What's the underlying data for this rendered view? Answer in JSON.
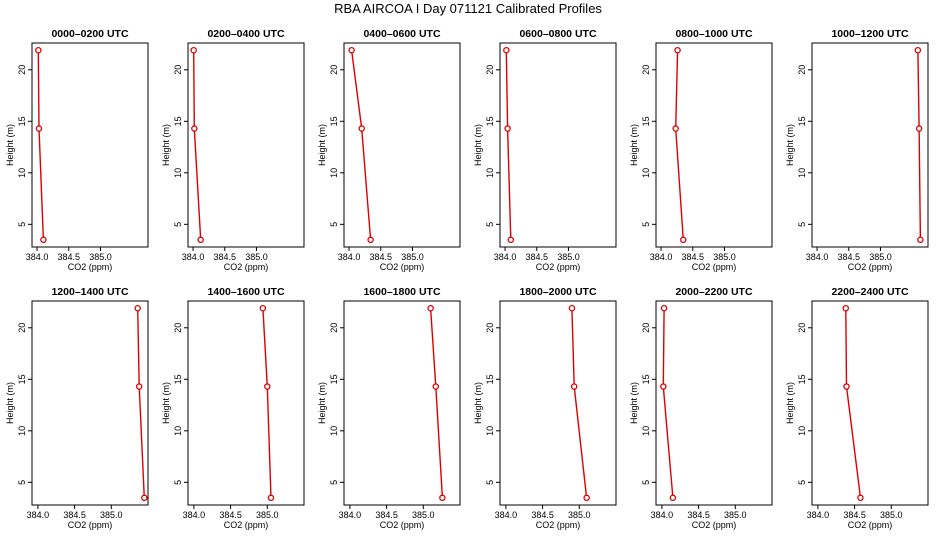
{
  "title": "RBA AIRCOA I  Day 071121  Calibrated Profiles",
  "chart_data": [
    {
      "type": "line",
      "title": "0000–0200 UTC",
      "xlabel": "CO2 (ppm)",
      "ylabel": "Height (m)",
      "x": [
        384.1,
        384.03,
        384.02
      ],
      "y": [
        3.5,
        14.3,
        21.9
      ],
      "xlim": [
        383.92,
        385.75
      ],
      "ylim": [
        2.8,
        22.6
      ],
      "xticks": [
        384.0,
        384.5,
        385.0
      ],
      "xtick_labels": [
        "384.0",
        "384.5",
        "385.0"
      ],
      "yticks": [
        5,
        10,
        15,
        20
      ],
      "ytick_labels": [
        "5",
        "10",
        "15",
        "20"
      ]
    },
    {
      "type": "line",
      "title": "0200–0400 UTC",
      "xlabel": "CO2 (ppm)",
      "ylabel": "Height (m)",
      "x": [
        384.12,
        384.02,
        384.01
      ],
      "y": [
        3.5,
        14.3,
        21.9
      ],
      "xlim": [
        383.92,
        385.75
      ],
      "ylim": [
        2.8,
        22.6
      ],
      "xticks": [
        384.0,
        384.5,
        385.0
      ],
      "xtick_labels": [
        "384.0",
        "384.5",
        "385.0"
      ],
      "yticks": [
        5,
        10,
        15,
        20
      ],
      "ytick_labels": [
        "5",
        "10",
        "15",
        "20"
      ]
    },
    {
      "type": "line",
      "title": "0400–0600 UTC",
      "xlabel": "CO2 (ppm)",
      "ylabel": "Height (m)",
      "x": [
        384.34,
        384.2,
        384.04
      ],
      "y": [
        3.5,
        14.3,
        21.9
      ],
      "xlim": [
        383.92,
        385.75
      ],
      "ylim": [
        2.8,
        22.6
      ],
      "xticks": [
        384.0,
        384.5,
        385.0
      ],
      "xtick_labels": [
        "384.0",
        "384.5",
        "385.0"
      ],
      "yticks": [
        5,
        10,
        15,
        20
      ],
      "ytick_labels": [
        "5",
        "10",
        "15",
        "20"
      ]
    },
    {
      "type": "line",
      "title": "0600–0800 UTC",
      "xlabel": "CO2 (ppm)",
      "ylabel": "Height (m)",
      "x": [
        384.09,
        384.04,
        384.02
      ],
      "y": [
        3.5,
        14.3,
        21.9
      ],
      "xlim": [
        383.92,
        385.75
      ],
      "ylim": [
        2.8,
        22.6
      ],
      "xticks": [
        384.0,
        384.5,
        385.0
      ],
      "xtick_labels": [
        "384.0",
        "384.5",
        "385.0"
      ],
      "yticks": [
        5,
        10,
        15,
        20
      ],
      "ytick_labels": [
        "5",
        "10",
        "15",
        "20"
      ]
    },
    {
      "type": "line",
      "title": "0800–1000 UTC",
      "xlabel": "CO2 (ppm)",
      "ylabel": "Height (m)",
      "x": [
        384.35,
        384.23,
        384.26
      ],
      "y": [
        3.5,
        14.3,
        21.9
      ],
      "xlim": [
        383.92,
        385.75
      ],
      "ylim": [
        2.8,
        22.6
      ],
      "xticks": [
        384.0,
        384.5,
        385.0
      ],
      "xtick_labels": [
        "384.0",
        "384.5",
        "385.0"
      ],
      "yticks": [
        5,
        10,
        15,
        20
      ],
      "ytick_labels": [
        "5",
        "10",
        "15",
        "20"
      ]
    },
    {
      "type": "line",
      "title": "1000–1200 UTC",
      "xlabel": "CO2 (ppm)",
      "ylabel": "Height (m)",
      "x": [
        385.63,
        385.61,
        385.59
      ],
      "y": [
        3.5,
        14.3,
        21.9
      ],
      "xlim": [
        383.92,
        385.75
      ],
      "ylim": [
        2.8,
        22.6
      ],
      "xticks": [
        384.0,
        384.5,
        385.0
      ],
      "xtick_labels": [
        "384.0",
        "384.5",
        "385.0"
      ],
      "yticks": [
        5,
        10,
        15,
        20
      ],
      "ytick_labels": [
        "5",
        "10",
        "15",
        "20"
      ]
    },
    {
      "type": "line",
      "title": "1200–1400 UTC",
      "xlabel": "CO2 (ppm)",
      "ylabel": "Height (m)",
      "x": [
        385.45,
        385.38,
        385.36
      ],
      "y": [
        3.5,
        14.3,
        21.9
      ],
      "xlim": [
        383.92,
        385.5
      ],
      "ylim": [
        2.8,
        22.6
      ],
      "xticks": [
        384.0,
        384.5,
        385.0
      ],
      "xtick_labels": [
        "384.0",
        "384.5",
        "385.0"
      ],
      "yticks": [
        5,
        10,
        15,
        20
      ],
      "ytick_labels": [
        "5",
        "10",
        "15",
        "20"
      ]
    },
    {
      "type": "line",
      "title": "1400–1600 UTC",
      "xlabel": "CO2 (ppm)",
      "ylabel": "Height (m)",
      "x": [
        385.05,
        385.0,
        384.94
      ],
      "y": [
        3.5,
        14.3,
        21.9
      ],
      "xlim": [
        383.92,
        385.5
      ],
      "ylim": [
        2.8,
        22.6
      ],
      "xticks": [
        384.0,
        384.5,
        385.0
      ],
      "xtick_labels": [
        "384.0",
        "384.5",
        "385.0"
      ],
      "yticks": [
        5,
        10,
        15,
        20
      ],
      "ytick_labels": [
        "5",
        "10",
        "15",
        "20"
      ]
    },
    {
      "type": "line",
      "title": "1600–1800 UTC",
      "xlabel": "CO2 (ppm)",
      "ylabel": "Height (m)",
      "x": [
        385.26,
        385.17,
        385.1
      ],
      "y": [
        3.5,
        14.3,
        21.9
      ],
      "xlim": [
        383.92,
        385.5
      ],
      "ylim": [
        2.8,
        22.6
      ],
      "xticks": [
        384.0,
        384.5,
        385.0
      ],
      "xtick_labels": [
        "384.0",
        "384.5",
        "385.0"
      ],
      "yticks": [
        5,
        10,
        15,
        20
      ],
      "ytick_labels": [
        "5",
        "10",
        "15",
        "20"
      ]
    },
    {
      "type": "line",
      "title": "1800–2000 UTC",
      "xlabel": "CO2 (ppm)",
      "ylabel": "Height (m)",
      "x": [
        385.1,
        384.93,
        384.9
      ],
      "y": [
        3.5,
        14.3,
        21.9
      ],
      "xlim": [
        383.92,
        385.5
      ],
      "ylim": [
        2.8,
        22.6
      ],
      "xticks": [
        384.0,
        384.5,
        385.0
      ],
      "xtick_labels": [
        "384.0",
        "384.5",
        "385.0"
      ],
      "yticks": [
        5,
        10,
        15,
        20
      ],
      "ytick_labels": [
        "5",
        "10",
        "15",
        "20"
      ]
    },
    {
      "type": "line",
      "title": "2000–2200 UTC",
      "xlabel": "CO2 (ppm)",
      "ylabel": "Height (m)",
      "x": [
        384.15,
        384.02,
        384.03
      ],
      "y": [
        3.5,
        14.3,
        21.9
      ],
      "xlim": [
        383.92,
        385.5
      ],
      "ylim": [
        2.8,
        22.6
      ],
      "xticks": [
        384.0,
        384.5,
        385.0
      ],
      "xtick_labels": [
        "384.0",
        "384.5",
        "385.0"
      ],
      "yticks": [
        5,
        10,
        15,
        20
      ],
      "ytick_labels": [
        "5",
        "10",
        "15",
        "20"
      ]
    },
    {
      "type": "line",
      "title": "2200–2400 UTC",
      "xlabel": "CO2 (ppm)",
      "ylabel": "Height (m)",
      "x": [
        384.58,
        384.39,
        384.38
      ],
      "y": [
        3.5,
        14.3,
        21.9
      ],
      "xlim": [
        383.92,
        385.5
      ],
      "ylim": [
        2.8,
        22.6
      ],
      "xticks": [
        384.0,
        384.5,
        385.0
      ],
      "xtick_labels": [
        "384.0",
        "384.5",
        "385.0"
      ],
      "yticks": [
        5,
        10,
        15,
        20
      ],
      "ytick_labels": [
        "5",
        "10",
        "15",
        "20"
      ]
    }
  ],
  "colors": {
    "series": "#dd0000",
    "axis": "#000000"
  }
}
